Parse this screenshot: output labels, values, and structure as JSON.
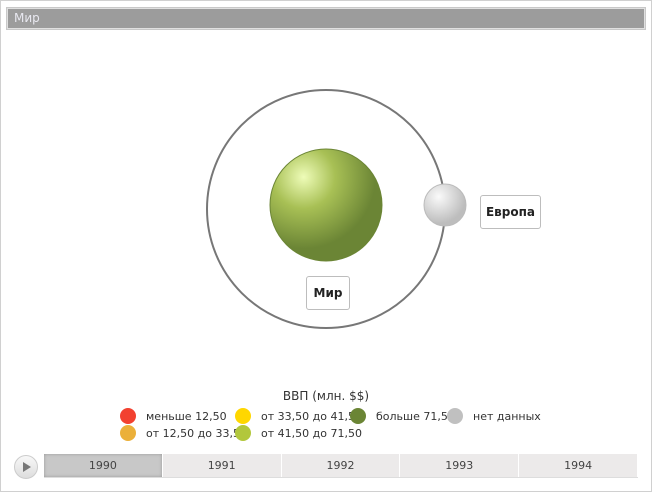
{
  "title": "Мир",
  "nodes": {
    "center": "Мир",
    "satellite": "Европа"
  },
  "legend": {
    "title": "ВВП (млн. $$)",
    "items": [
      {
        "label": "меньше 12,50",
        "color": "#f24130"
      },
      {
        "label": "от 12,50 до 33,50",
        "color": "#ebb03a"
      },
      {
        "label": "от 33,50 до 41,50",
        "color": "#ffd700"
      },
      {
        "label": "от 41,50 до 71,50",
        "color": "#b2c73c"
      },
      {
        "label": "больше 71,50",
        "color": "#6b8535"
      },
      {
        "label": "нет данных",
        "color": "#c0c0c0"
      }
    ]
  },
  "timeline": {
    "years": [
      "1990",
      "1991",
      "1992",
      "1993",
      "1994"
    ],
    "selected": "1990"
  }
}
